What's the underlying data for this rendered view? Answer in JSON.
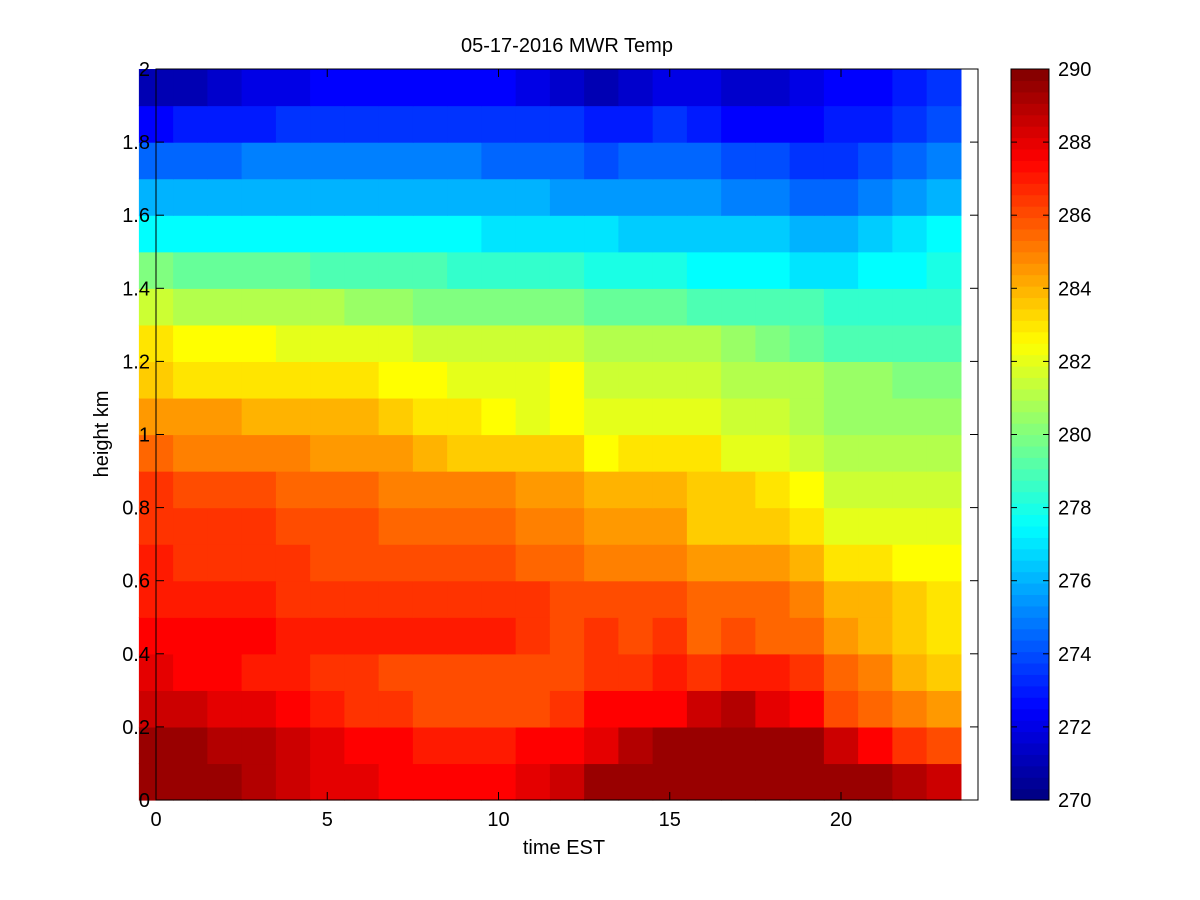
{
  "chart_data": {
    "type": "heatmap",
    "title": "05-17-2016 MWR Temp",
    "xlabel": "time EST",
    "ylabel": "height km",
    "xlim": [
      0,
      24
    ],
    "ylim": [
      0,
      2
    ],
    "x_ticks": [
      "0",
      "5",
      "10",
      "15",
      "20"
    ],
    "y_ticks": [
      "0",
      "0.2",
      "0.4",
      "0.6",
      "0.8",
      "1",
      "1.2",
      "1.4",
      "1.6",
      "1.8",
      "2"
    ],
    "colorbar": {
      "min": 270,
      "max": 290,
      "ticks": [
        "270",
        "272",
        "274",
        "276",
        "278",
        "280",
        "282",
        "284",
        "286",
        "288",
        "290"
      ],
      "colormap": "jet"
    },
    "x": [
      0.5,
      1.5,
      2.5,
      3.5,
      4.5,
      5.5,
      6.5,
      7.5,
      8.5,
      9.5,
      10.5,
      11.5,
      12.5,
      13.5,
      14.5,
      15.5,
      16.5,
      17.5,
      18.5,
      19.5,
      20.5,
      21.5,
      22.5,
      23.5
    ],
    "y": [
      0.05,
      0.15,
      0.25,
      0.35,
      0.45,
      0.55,
      0.65,
      0.75,
      0.85,
      0.95,
      1.05,
      1.15,
      1.25,
      1.35,
      1.45,
      1.55,
      1.65,
      1.75,
      1.85,
      1.95
    ],
    "z": [
      [
        289.5,
        289.5,
        289.5,
        289,
        288.5,
        288,
        288,
        287.5,
        287.5,
        287.5,
        287.5,
        288,
        288.5,
        289.5,
        289.5,
        289.5,
        289.5,
        289.5,
        289.5,
        289.5,
        289.5,
        289.5,
        289,
        288.5
      ],
      [
        289.5,
        289.5,
        289,
        289,
        288.5,
        288,
        287.5,
        287.5,
        287,
        287,
        287,
        287.5,
        287.5,
        288,
        289,
        289.5,
        289.5,
        289.5,
        289.5,
        289.5,
        288.5,
        287.5,
        286.5,
        286
      ],
      [
        288.5,
        288.5,
        288,
        288,
        287.5,
        287,
        286.5,
        286.5,
        286,
        286,
        286,
        286,
        286.5,
        287.5,
        287.5,
        287.5,
        288.5,
        289,
        288,
        287.5,
        286,
        285.5,
        285,
        284.5
      ],
      [
        288,
        287.5,
        287.5,
        287,
        287,
        286.5,
        286.5,
        286,
        286,
        286,
        286,
        286,
        286,
        286.5,
        286.5,
        287,
        286.5,
        287,
        287,
        286.5,
        285.5,
        285,
        284,
        283.5
      ],
      [
        287.5,
        287.5,
        287.5,
        287.5,
        287,
        287,
        287,
        287,
        287,
        287,
        287,
        286.5,
        286,
        286.5,
        286,
        286.5,
        285.5,
        286,
        285.5,
        285.5,
        284.5,
        284,
        283.5,
        283
      ],
      [
        287,
        287,
        287,
        287,
        286.5,
        286.5,
        286.5,
        286.5,
        286.5,
        286.5,
        286.5,
        286.5,
        286,
        286,
        286,
        286,
        285.5,
        285.5,
        285.5,
        285,
        284,
        284,
        283.5,
        283
      ],
      [
        287,
        286.5,
        286.5,
        286.5,
        286.5,
        286,
        286,
        286,
        286,
        286,
        286,
        285.5,
        285.5,
        285,
        285,
        285,
        284.5,
        284.5,
        284.5,
        284,
        283,
        283,
        282.5,
        282.5
      ],
      [
        286.5,
        286.5,
        286.5,
        286.5,
        286,
        286,
        286,
        285.5,
        285.5,
        285.5,
        285.5,
        285,
        285,
        284.5,
        284.5,
        284.5,
        283.5,
        283.5,
        283.5,
        283,
        282,
        282,
        282,
        282
      ],
      [
        286.5,
        286,
        286,
        286,
        285.5,
        285.5,
        285.5,
        285,
        285,
        285,
        285,
        284.5,
        284.5,
        284,
        284,
        284,
        283.5,
        283.5,
        283,
        282.5,
        281.5,
        281.5,
        281.5,
        281.5
      ],
      [
        285.5,
        285,
        285,
        285,
        285,
        284.5,
        284.5,
        284.5,
        284,
        283.5,
        283.5,
        283.5,
        283.5,
        282.5,
        283,
        283,
        283,
        282,
        282,
        281.5,
        281,
        281,
        281,
        281
      ],
      [
        284.5,
        284.5,
        284.5,
        284,
        284,
        284,
        284,
        283.5,
        283,
        283,
        282.5,
        282,
        282.5,
        282,
        282,
        282,
        282,
        281.5,
        281.5,
        281,
        280.5,
        280.5,
        280.5,
        280.5
      ],
      [
        283.5,
        283,
        283,
        283,
        283,
        283,
        283,
        282.5,
        282.5,
        282,
        282,
        282,
        282.5,
        281.5,
        281.5,
        281.5,
        281.5,
        281,
        281,
        281,
        280.5,
        280.5,
        280,
        280
      ],
      [
        283,
        282.5,
        282.5,
        282.5,
        282,
        282,
        282,
        282,
        281.5,
        281.5,
        281.5,
        281.5,
        281.5,
        281,
        281,
        281,
        281,
        280.5,
        280,
        279.5,
        279,
        279,
        279,
        279
      ],
      [
        281.5,
        281,
        281,
        281,
        281,
        281,
        280.5,
        280.5,
        280,
        280,
        280,
        280,
        280,
        279.5,
        279.5,
        279.5,
        279,
        279,
        279,
        279,
        278.5,
        278.5,
        278.5,
        278.5
      ],
      [
        280,
        279.5,
        279.5,
        279.5,
        279.5,
        279,
        279,
        279,
        279,
        278.5,
        278.5,
        278.5,
        278.5,
        278,
        278,
        278,
        277.5,
        277.5,
        277.5,
        277,
        277,
        277.5,
        277.5,
        278
      ],
      [
        277.5,
        277.5,
        277.5,
        277.5,
        277.5,
        277.5,
        277.5,
        277.5,
        277.5,
        277.5,
        277,
        277,
        277,
        277,
        276.5,
        276.5,
        276.5,
        276.5,
        276.5,
        276,
        276,
        276.5,
        277,
        277.5
      ],
      [
        276,
        276,
        276,
        276,
        276,
        276,
        276,
        276,
        276,
        276,
        276,
        276,
        275.5,
        275.5,
        275.5,
        275.5,
        275.5,
        275,
        275,
        274.5,
        274.5,
        275,
        275.5,
        276
      ],
      [
        274.5,
        274.5,
        274.5,
        275,
        275,
        275,
        275,
        275,
        275,
        275,
        274.5,
        274.5,
        274.5,
        274,
        274.5,
        274.5,
        274.5,
        274,
        274,
        273.5,
        273.5,
        274,
        274.5,
        275
      ],
      [
        272.5,
        273,
        273,
        273,
        273.5,
        273.5,
        273.5,
        273.5,
        273.5,
        273.5,
        273.5,
        273.5,
        273.5,
        273,
        273,
        273.5,
        273,
        272.5,
        272.5,
        272.5,
        273,
        273,
        273.5,
        274
      ],
      [
        271,
        271,
        271.5,
        272,
        272,
        272.5,
        272.5,
        272.5,
        272.5,
        272.5,
        272.5,
        272,
        271.5,
        271,
        271.5,
        272,
        272,
        271.5,
        271.5,
        272,
        272.5,
        272.5,
        273,
        273.5
      ]
    ]
  }
}
